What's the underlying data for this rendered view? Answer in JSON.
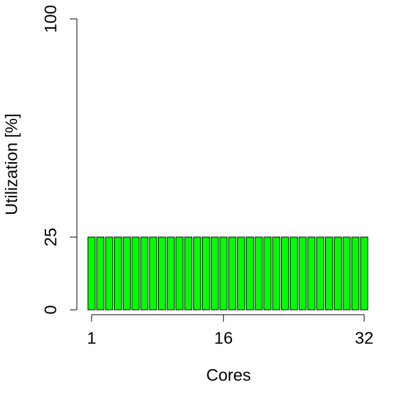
{
  "chart_data": {
    "type": "bar",
    "x_label": "Cores",
    "y_label": "Utilization [%]",
    "categories": [
      "1",
      null,
      null,
      null,
      null,
      null,
      null,
      null,
      null,
      null,
      null,
      null,
      null,
      null,
      null,
      "16",
      null,
      null,
      null,
      null,
      null,
      null,
      null,
      null,
      null,
      null,
      null,
      null,
      null,
      null,
      null,
      "32"
    ],
    "values": [
      25,
      25,
      25,
      25,
      25,
      25,
      25,
      25,
      25,
      25,
      25,
      25,
      25,
      25,
      25,
      25,
      25,
      25,
      25,
      25,
      25,
      25,
      25,
      25,
      25,
      25,
      25,
      25,
      25,
      25,
      25,
      25
    ],
    "color": "#00ff00",
    "ylim": [
      0,
      100
    ],
    "yticks": [
      0,
      25,
      100
    ]
  }
}
